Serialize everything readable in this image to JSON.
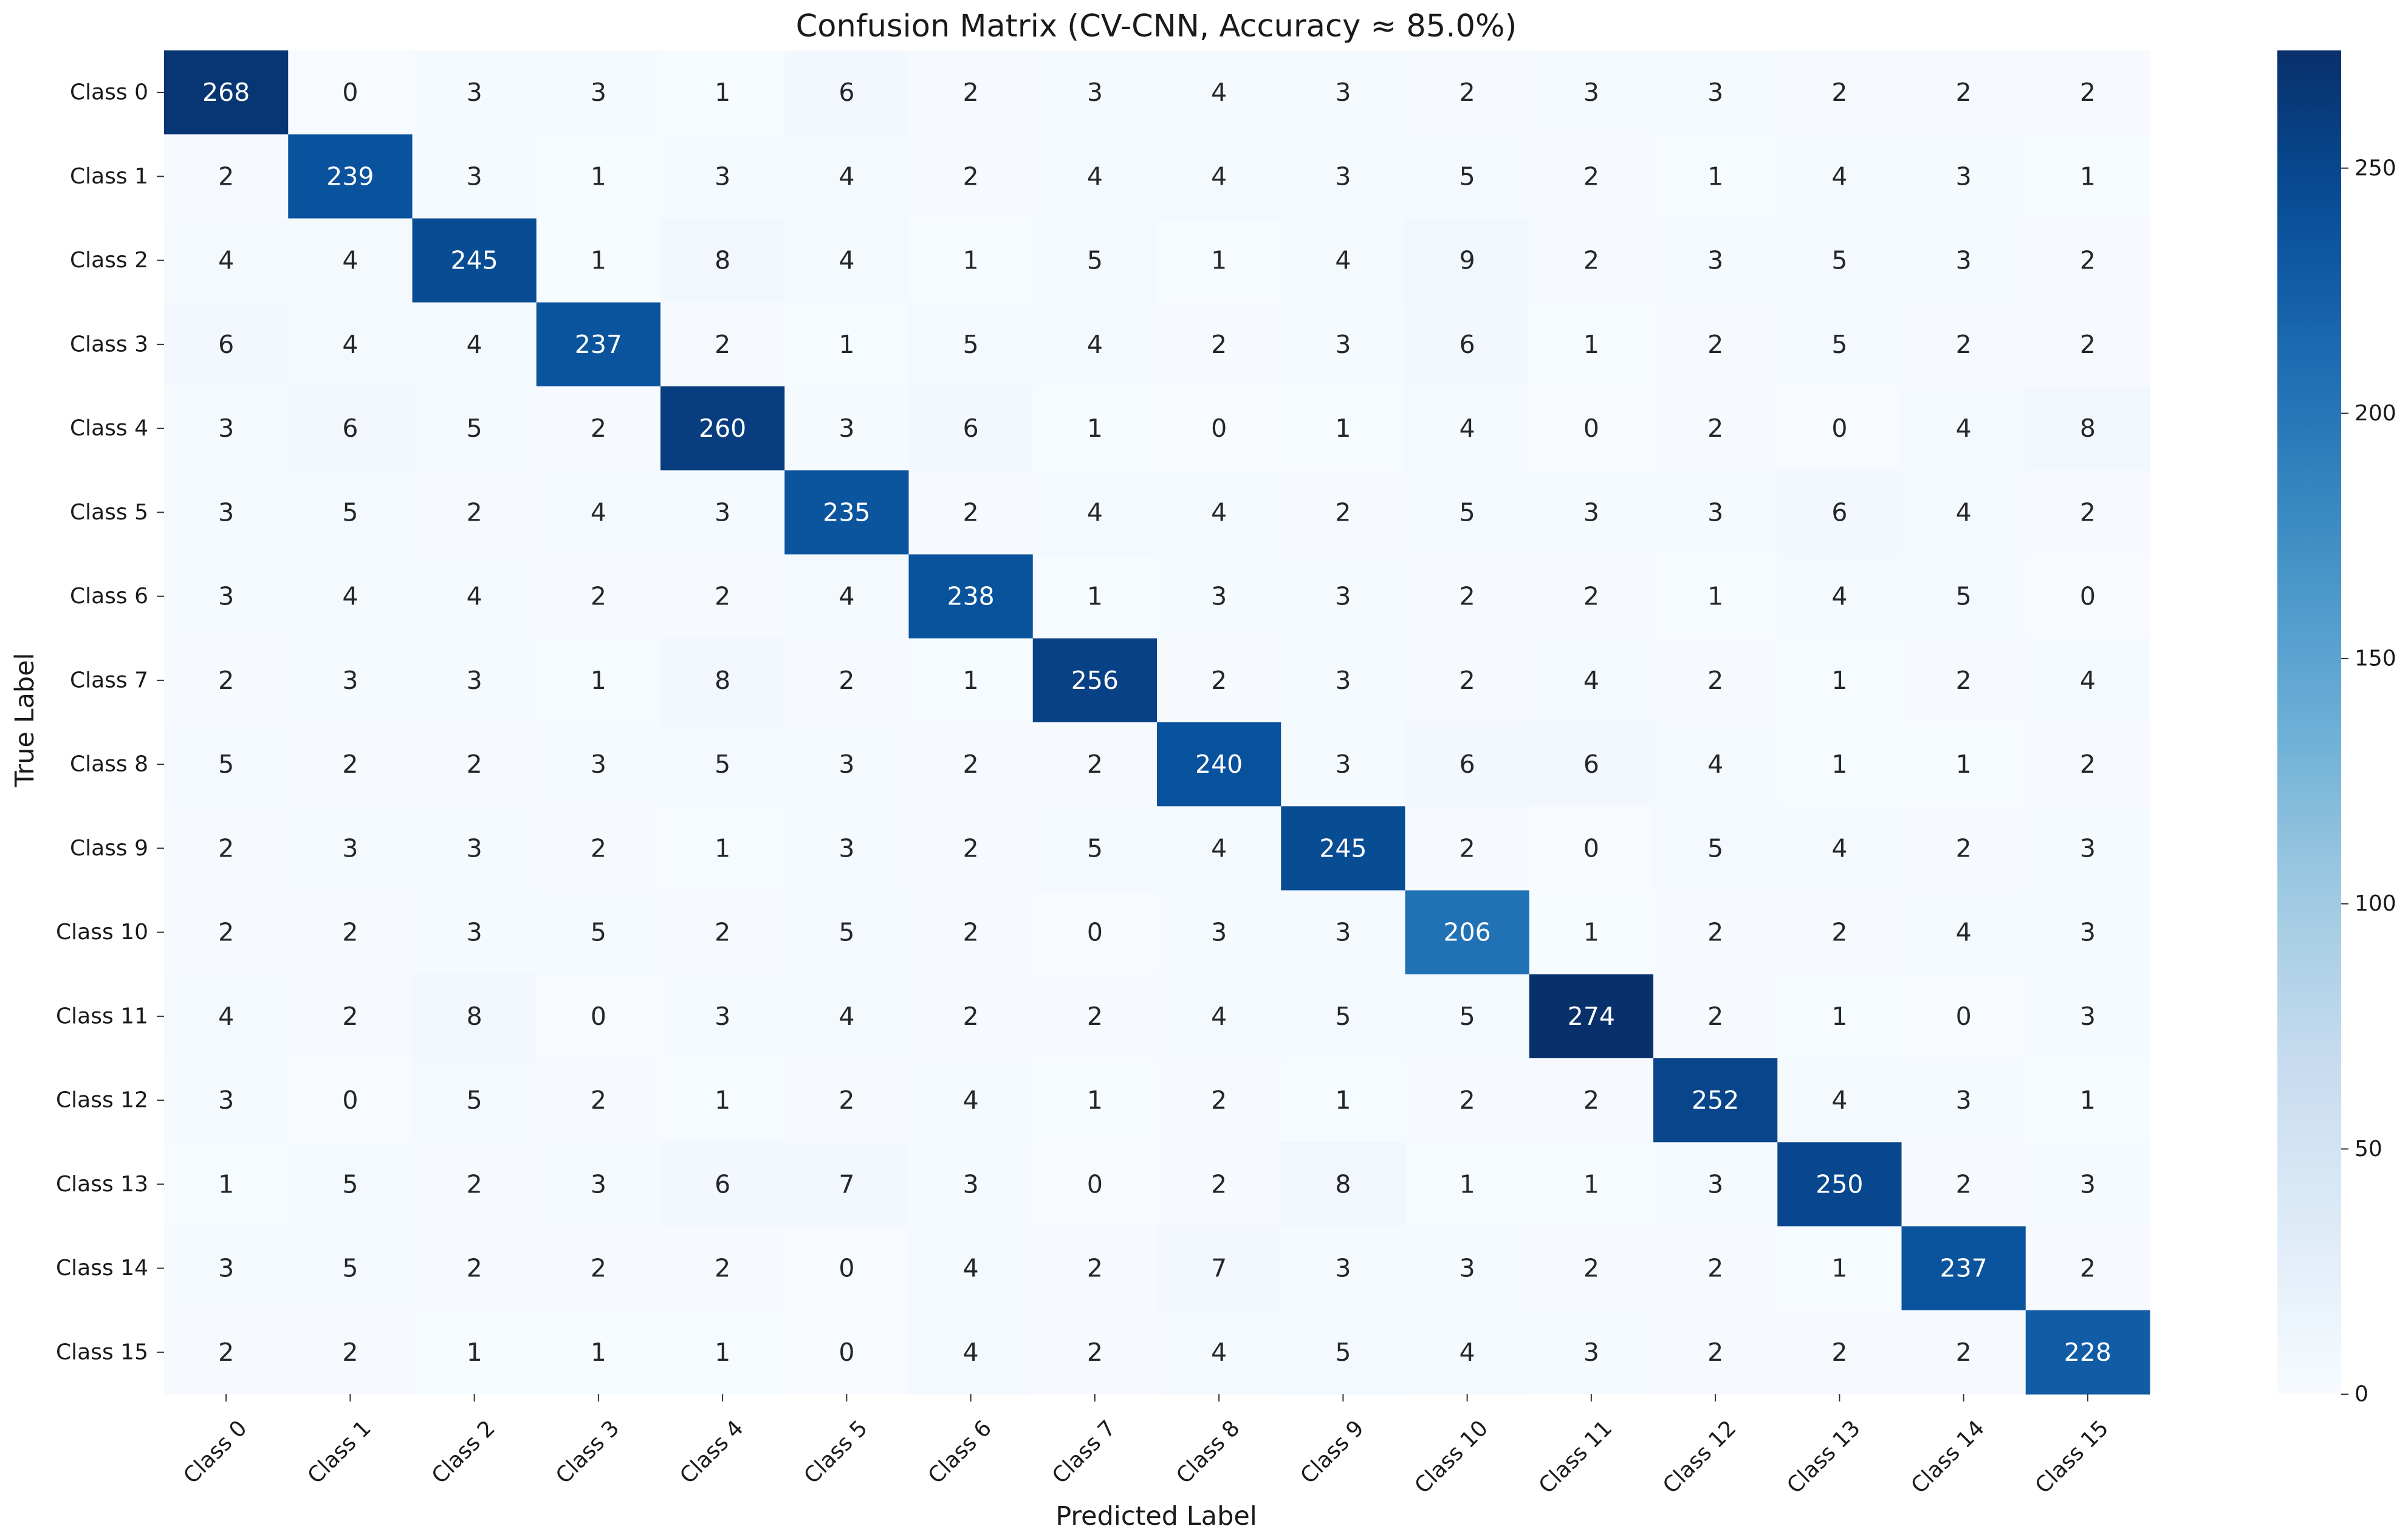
{
  "chart_data": {
    "type": "heatmap",
    "title": "Confusion Matrix (CV-CNN, Accuracy ≈ 85.0%)",
    "xlabel": "Predicted Label",
    "ylabel": "True Label",
    "x_categories": [
      "Class 0",
      "Class 1",
      "Class 2",
      "Class 3",
      "Class 4",
      "Class 5",
      "Class 6",
      "Class 7",
      "Class 8",
      "Class 9",
      "Class 10",
      "Class 11",
      "Class 12",
      "Class 13",
      "Class 14",
      "Class 15"
    ],
    "y_categories": [
      "Class 0",
      "Class 1",
      "Class 2",
      "Class 3",
      "Class 4",
      "Class 5",
      "Class 6",
      "Class 7",
      "Class 8",
      "Class 9",
      "Class 10",
      "Class 11",
      "Class 12",
      "Class 13",
      "Class 14",
      "Class 15"
    ],
    "values": [
      [
        268,
        0,
        3,
        3,
        1,
        6,
        2,
        3,
        4,
        3,
        2,
        3,
        3,
        2,
        2,
        2
      ],
      [
        2,
        239,
        3,
        1,
        3,
        4,
        2,
        4,
        4,
        3,
        5,
        2,
        1,
        4,
        3,
        1
      ],
      [
        4,
        4,
        245,
        1,
        8,
        4,
        1,
        5,
        1,
        4,
        9,
        2,
        3,
        5,
        3,
        2
      ],
      [
        6,
        4,
        4,
        237,
        2,
        1,
        5,
        4,
        2,
        3,
        6,
        1,
        2,
        5,
        2,
        2
      ],
      [
        3,
        6,
        5,
        2,
        260,
        3,
        6,
        1,
        0,
        1,
        4,
        0,
        2,
        0,
        4,
        8
      ],
      [
        3,
        5,
        2,
        4,
        3,
        235,
        2,
        4,
        4,
        2,
        5,
        3,
        3,
        6,
        4,
        2
      ],
      [
        3,
        4,
        4,
        2,
        2,
        4,
        238,
        1,
        3,
        3,
        2,
        2,
        1,
        4,
        5,
        0
      ],
      [
        2,
        3,
        3,
        1,
        8,
        2,
        1,
        256,
        2,
        3,
        2,
        4,
        2,
        1,
        2,
        4
      ],
      [
        5,
        2,
        2,
        3,
        5,
        3,
        2,
        2,
        240,
        3,
        6,
        6,
        4,
        1,
        1,
        2
      ],
      [
        2,
        3,
        3,
        2,
        1,
        3,
        2,
        5,
        4,
        245,
        2,
        0,
        5,
        4,
        2,
        3
      ],
      [
        2,
        2,
        3,
        5,
        2,
        5,
        2,
        0,
        3,
        3,
        206,
        1,
        2,
        2,
        4,
        3
      ],
      [
        4,
        2,
        8,
        0,
        3,
        4,
        2,
        2,
        4,
        5,
        5,
        274,
        2,
        1,
        0,
        3
      ],
      [
        3,
        0,
        5,
        2,
        1,
        2,
        4,
        1,
        2,
        1,
        2,
        2,
        252,
        4,
        3,
        1
      ],
      [
        1,
        5,
        2,
        3,
        6,
        7,
        3,
        0,
        2,
        8,
        1,
        1,
        3,
        250,
        2,
        3
      ],
      [
        3,
        5,
        2,
        2,
        2,
        0,
        4,
        2,
        7,
        3,
        3,
        2,
        2,
        1,
        237,
        2
      ],
      [
        2,
        2,
        1,
        1,
        1,
        0,
        4,
        2,
        4,
        5,
        4,
        3,
        2,
        2,
        2,
        228
      ]
    ],
    "colorscale": "Blues",
    "vmin": 0,
    "vmax": 274,
    "colorbar_ticks": [
      0,
      50,
      100,
      150,
      200,
      250
    ],
    "colors": {
      "low": "#f7fbff",
      "high": "#08306b",
      "text_dark": "#262626",
      "text_light": "#ffffff"
    }
  }
}
